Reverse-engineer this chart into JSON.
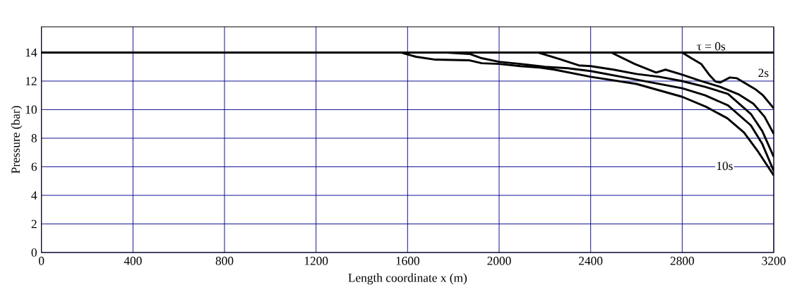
{
  "chart_data": {
    "type": "line",
    "xlabel": "Length coordinate x (m)",
    "ylabel": "Pressure (bar)",
    "xlim": [
      0,
      3200
    ],
    "ylim": [
      0,
      15.8
    ],
    "xticks": [
      0,
      400,
      800,
      1200,
      1600,
      2000,
      2400,
      2800,
      3200
    ],
    "yticks": [
      0,
      2,
      4,
      6,
      8,
      10,
      12,
      14
    ],
    "grid": true,
    "line_style": "solid",
    "marker": "none",
    "series": [
      {
        "name": "τ = 0s",
        "color": "#000000",
        "x": [
          0,
          3200
        ],
        "values": [
          14,
          14
        ]
      },
      {
        "name": "2s",
        "color": "#000000",
        "x": [
          0,
          2800,
          2840,
          2883,
          2920,
          2945,
          2966,
          3008,
          3039,
          3070,
          3122,
          3153,
          3200
        ],
        "values": [
          14,
          14,
          13.6,
          13.2,
          12.4,
          11.97,
          11.9,
          12.25,
          12.2,
          11.9,
          11.4,
          11.0,
          10.1
        ]
      },
      {
        "color": "#000000",
        "x": [
          0,
          2490,
          2592,
          2686,
          2727,
          2800,
          2873,
          2966,
          3049,
          3112,
          3160,
          3200
        ],
        "values": [
          14,
          14,
          13.2,
          12.6,
          12.8,
          12.45,
          12.05,
          11.6,
          11.05,
          10.4,
          9.5,
          8.3
        ]
      },
      {
        "color": "#000000",
        "x": [
          0,
          2170,
          2263,
          2348,
          2400,
          2500,
          2600,
          2700,
          2800,
          2900,
          3000,
          3100,
          3150,
          3200
        ],
        "values": [
          14,
          14,
          13.55,
          13.1,
          13.05,
          12.8,
          12.5,
          12.3,
          12.0,
          11.6,
          11.1,
          9.7,
          8.5,
          6.7
        ]
      },
      {
        "color": "#000000",
        "x": [
          0,
          1770,
          1871,
          1924,
          2000,
          2093,
          2200,
          2300,
          2400,
          2600,
          2800,
          2900,
          3000,
          3100,
          3150,
          3200
        ],
        "values": [
          14,
          14,
          13.9,
          13.6,
          13.35,
          13.2,
          13.0,
          12.9,
          12.7,
          12.1,
          11.5,
          11.0,
          10.3,
          8.9,
          7.6,
          5.7
        ]
      },
      {
        "name": "10s",
        "color": "#000000",
        "x": [
          0,
          1570,
          1637,
          1722,
          1871,
          1924,
          2000,
          2093,
          2178,
          2242,
          2400,
          2600,
          2800,
          2904,
          2997,
          3070,
          3132,
          3200
        ],
        "values": [
          14,
          14,
          13.7,
          13.5,
          13.45,
          13.25,
          13.2,
          13.05,
          12.95,
          12.8,
          12.3,
          11.8,
          10.9,
          10.2,
          9.4,
          8.4,
          7.05,
          5.4
        ]
      }
    ]
  }
}
